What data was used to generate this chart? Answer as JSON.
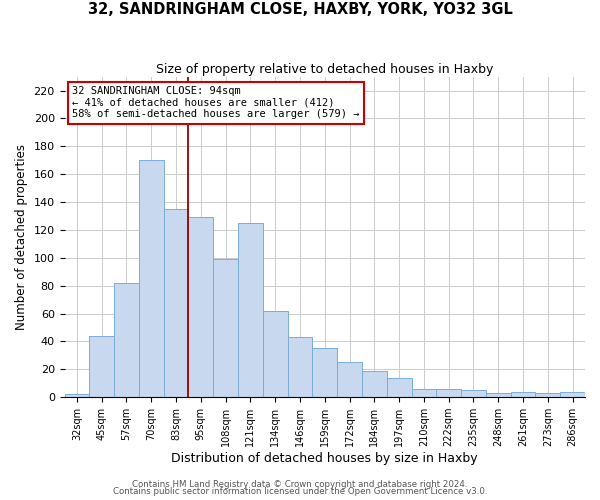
{
  "title": "32, SANDRINGHAM CLOSE, HAXBY, YORK, YO32 3GL",
  "subtitle": "Size of property relative to detached houses in Haxby",
  "xlabel": "Distribution of detached houses by size in Haxby",
  "ylabel": "Number of detached properties",
  "bar_labels": [
    "32sqm",
    "45sqm",
    "57sqm",
    "70sqm",
    "83sqm",
    "95sqm",
    "108sqm",
    "121sqm",
    "134sqm",
    "146sqm",
    "159sqm",
    "172sqm",
    "184sqm",
    "197sqm",
    "210sqm",
    "222sqm",
    "235sqm",
    "248sqm",
    "261sqm",
    "273sqm",
    "286sqm"
  ],
  "bar_values": [
    2,
    44,
    82,
    170,
    135,
    129,
    99,
    125,
    62,
    43,
    35,
    25,
    19,
    14,
    6,
    6,
    5,
    3,
    4,
    3,
    4
  ],
  "bar_color": "#c8d9ef",
  "bar_edge_color": "#7aaed6",
  "ylim": [
    0,
    230
  ],
  "yticks": [
    0,
    20,
    40,
    60,
    80,
    100,
    120,
    140,
    160,
    180,
    200,
    220
  ],
  "vline_x_index": 5,
  "vline_color": "#990000",
  "annotation_title": "32 SANDRINGHAM CLOSE: 94sqm",
  "annotation_line1": "← 41% of detached houses are smaller (412)",
  "annotation_line2": "58% of semi-detached houses are larger (579) →",
  "annotation_box_edge_color": "#cc0000",
  "footer1": "Contains HM Land Registry data © Crown copyright and database right 2024.",
  "footer2": "Contains public sector information licensed under the Open Government Licence v3.0."
}
